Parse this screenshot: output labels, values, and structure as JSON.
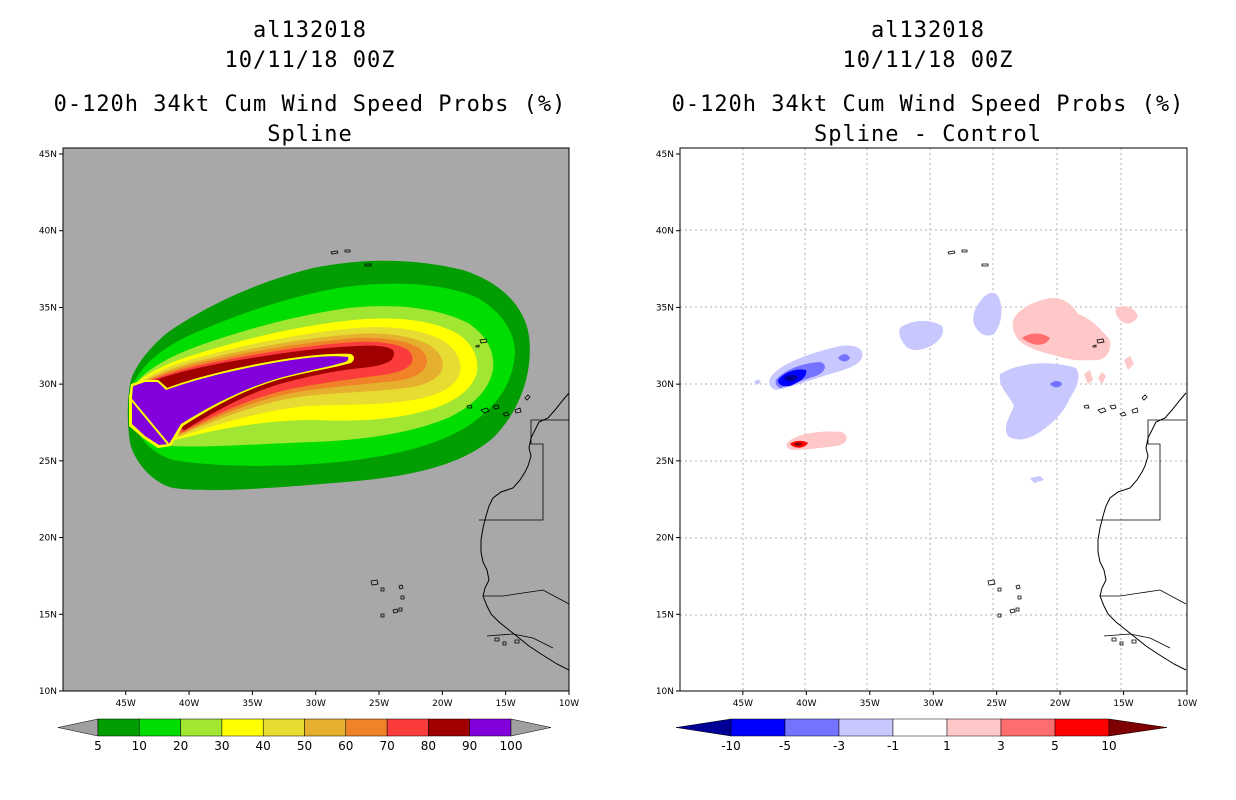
{
  "left_panel": {
    "title_line1": "al132018",
    "title_line2": "10/11/18 00Z",
    "title_line3": "0-120h 34kt Cum Wind Speed Probs (%)",
    "title_line4": "Spline",
    "background_color": "#a8a8a8",
    "colorbar": {
      "labels": [
        "5",
        "10",
        "20",
        "30",
        "40",
        "50",
        "60",
        "70",
        "80",
        "90",
        "100"
      ],
      "colors": [
        "#019d01",
        "#00dd00",
        "#a0e632",
        "#ffff00",
        "#e6dc32",
        "#e6af2d",
        "#f08228",
        "#fa3c3c",
        "#a00000",
        "#8200dc"
      ],
      "end_color": "#a0a0a0"
    }
  },
  "right_panel": {
    "title_line1": "al132018",
    "title_line2": "10/11/18 00Z",
    "title_line3": "0-120h 34kt Cum Wind Speed Probs (%)",
    "title_line4": "Spline - Control",
    "background_color": "#ffffff",
    "colorbar": {
      "labels": [
        "-10",
        "-5",
        "-3",
        "-1",
        "1",
        "3",
        "5",
        "10"
      ],
      "colors": [
        "#0000ff",
        "#7373ff",
        "#c8c8ff",
        "#ffffff",
        "#ffc8c8",
        "#ff6e6e",
        "#ff0000"
      ],
      "low_end_color": "#000096",
      "high_end_color": "#7f0000"
    }
  },
  "axes": {
    "lon_labels": [
      "45W",
      "40W",
      "35W",
      "30W",
      "25W",
      "20W",
      "15W",
      "10W"
    ],
    "lat_labels": [
      "45N",
      "40N",
      "35N",
      "30N",
      "25N",
      "20N",
      "15N",
      "10N"
    ]
  }
}
